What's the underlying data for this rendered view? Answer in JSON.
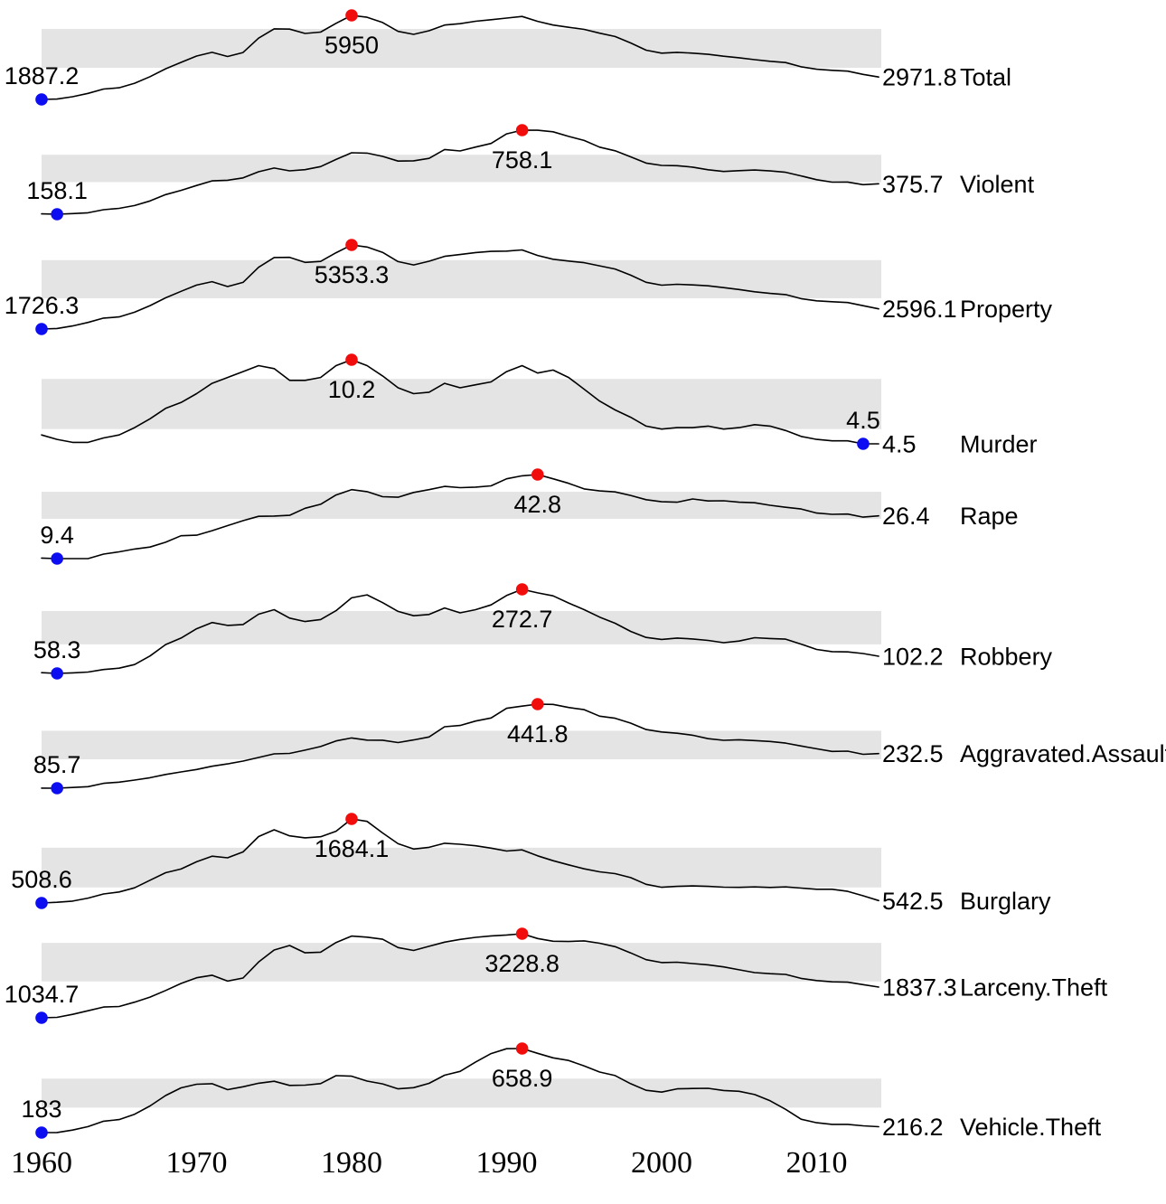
{
  "colors": {
    "line": "#000000",
    "band": "#e4e4e4",
    "min_dot": "#0d0df2",
    "peak_dot": "#f20d0d",
    "text": "#000000",
    "background": "#ffffff"
  },
  "chart_data": {
    "type": "line",
    "variant": "sparklines-small-multiples",
    "band": "interquartile-range",
    "grid": false,
    "legend": "none",
    "years": {
      "start": 1960,
      "end": 2014
    },
    "x_ticks": [
      1960,
      1970,
      1980,
      1990,
      2000,
      2010
    ],
    "series": [
      {
        "name": "Total",
        "min_label": "1887.2",
        "min_year": 1960,
        "max_label": "5950",
        "max_year": 1980,
        "end_label": "2971.8",
        "values": [
          1887.2,
          1906.1,
          2019.8,
          2180.3,
          2388.1,
          2449.0,
          2670.8,
          2989.7,
          3370.2,
          3680.0,
          3984.5,
          4164.7,
          3961.4,
          4154.4,
          4850.4,
          5298.5,
          5287.3,
          5077.6,
          5140.3,
          5565.5,
          5950.0,
          5858.2,
          5603.6,
          5175.0,
          5031.3,
          5207.1,
          5480.4,
          5550.0,
          5664.2,
          5741.0,
          5820.3,
          5897.8,
          5660.2,
          5484.4,
          5373.5,
          5274.9,
          5087.6,
          4927.3,
          4619.3,
          4266.5,
          4124.8,
          4162.6,
          4125.0,
          4067.0,
          3977.3,
          3900.5,
          3808.1,
          3730.4,
          3669.0,
          3465.5,
          3345.5,
          3292.5,
          3255.8,
          3098.6,
          2971.8
        ]
      },
      {
        "name": "Violent",
        "min_label": "158.1",
        "min_year": 1961,
        "max_label": "758.1",
        "max_year": 1991,
        "end_label": "375.7",
        "values": [
          160.9,
          158.1,
          162.3,
          168.2,
          190.6,
          200.2,
          220.0,
          253.2,
          298.4,
          328.7,
          363.5,
          396.0,
          401.0,
          417.4,
          461.1,
          487.8,
          467.8,
          475.9,
          497.8,
          548.9,
          596.6,
          594.3,
          571.1,
          537.7,
          539.2,
          556.6,
          620.1,
          609.7,
          637.2,
          663.1,
          731.8,
          758.1,
          757.5,
          746.8,
          713.6,
          684.5,
          636.6,
          611.0,
          567.6,
          523.0,
          506.5,
          504.5,
          494.4,
          475.8,
          463.2,
          469.0,
          473.6,
          466.9,
          457.5,
          431.9,
          404.5,
          387.1,
          387.8,
          369.1,
          375.7
        ]
      },
      {
        "name": "Property",
        "min_label": "1726.3",
        "min_year": 1960,
        "max_label": "5353.3",
        "max_year": 1980,
        "end_label": "2596.1",
        "values": [
          1726.3,
          1747.9,
          1857.5,
          2012.1,
          2197.5,
          2248.8,
          2450.9,
          2736.5,
          3071.8,
          3351.3,
          3621.0,
          3768.8,
          3560.4,
          3737.0,
          4389.3,
          4810.7,
          4819.5,
          4601.7,
          4642.5,
          5016.6,
          5353.3,
          5263.9,
          5032.5,
          4637.4,
          4492.1,
          4650.5,
          4862.6,
          4940.3,
          5027.1,
          5077.9,
          5088.5,
          5139.7,
          4902.7,
          4737.6,
          4660.0,
          4590.5,
          4451.0,
          4316.3,
          4052.5,
          3743.6,
          3618.3,
          3658.1,
          3630.6,
          3591.2,
          3514.1,
          3431.5,
          3334.5,
          3263.5,
          3211.5,
          3036.1,
          2941.9,
          2905.4,
          2868.0,
          2730.7,
          2596.1
        ]
      },
      {
        "name": "Murder",
        "min_label": "4.5",
        "min_year": 2013,
        "max_label": "10.2",
        "max_year": 1980,
        "end_label": "4.5",
        "values": [
          5.1,
          4.8,
          4.6,
          4.6,
          4.9,
          5.1,
          5.6,
          6.2,
          6.9,
          7.3,
          7.9,
          8.6,
          9.0,
          9.4,
          9.8,
          9.6,
          8.8,
          8.8,
          9.0,
          9.8,
          10.2,
          9.8,
          9.1,
          8.3,
          7.9,
          8.0,
          8.6,
          8.3,
          8.5,
          8.7,
          9.4,
          9.8,
          9.3,
          9.5,
          9.0,
          8.2,
          7.4,
          6.8,
          6.3,
          5.7,
          5.5,
          5.6,
          5.6,
          5.7,
          5.5,
          5.6,
          5.8,
          5.7,
          5.4,
          5.0,
          4.8,
          4.7,
          4.7,
          4.5,
          4.5
        ]
      },
      {
        "name": "Rape",
        "min_label": "9.4",
        "min_year": 1961,
        "max_label": "42.8",
        "max_year": 1992,
        "end_label": "26.4",
        "values": [
          9.6,
          9.4,
          9.4,
          9.4,
          11.2,
          12.1,
          13.2,
          14.0,
          15.9,
          18.5,
          18.7,
          20.5,
          22.5,
          24.5,
          26.2,
          26.3,
          26.6,
          29.4,
          31.0,
          34.7,
          36.8,
          36.0,
          34.0,
          33.8,
          35.7,
          36.8,
          38.1,
          37.6,
          37.8,
          38.3,
          41.1,
          42.3,
          42.8,
          41.1,
          39.3,
          37.1,
          36.3,
          35.9,
          34.5,
          32.8,
          32.0,
          31.8,
          33.1,
          32.3,
          32.4,
          31.8,
          31.6,
          30.6,
          29.8,
          29.1,
          27.5,
          27.0,
          27.1,
          25.9,
          26.4
        ]
      },
      {
        "name": "Robbery",
        "min_label": "58.3",
        "min_year": 1961,
        "max_label": "272.7",
        "max_year": 1991,
        "end_label": "102.2",
        "values": [
          60.1,
          58.3,
          59.7,
          61.8,
          68.2,
          71.7,
          80.8,
          102.8,
          131.8,
          148.4,
          172.1,
          188.0,
          180.7,
          183.1,
          209.3,
          220.8,
          199.3,
          190.7,
          195.8,
          218.4,
          251.1,
          258.7,
          238.9,
          216.5,
          205.4,
          208.5,
          225.1,
          212.7,
          220.9,
          233.0,
          257.0,
          272.7,
          263.7,
          256.0,
          237.8,
          220.9,
          201.9,
          186.2,
          165.5,
          150.1,
          145.0,
          148.5,
          146.1,
          142.5,
          136.7,
          140.8,
          149.4,
          147.3,
          145.7,
          133.1,
          119.3,
          113.9,
          113.1,
          109.0,
          102.2
        ]
      },
      {
        "name": "Aggravated.Assault",
        "min_label": "85.7",
        "min_year": 1961,
        "max_label": "441.8",
        "max_year": 1992,
        "end_label": "232.5",
        "values": [
          86.1,
          85.7,
          88.6,
          92.4,
          106.2,
          111.3,
          120.3,
          130.2,
          143.8,
          154.5,
          164.8,
          178.8,
          188.8,
          200.5,
          215.8,
          231.1,
          233.2,
          247.0,
          262.1,
          286.0,
          298.5,
          289.3,
          289.2,
          279.2,
          290.2,
          302.9,
          346.1,
          351.3,
          370.2,
          383.4,
          424.1,
          433.4,
          441.8,
          440.5,
          427.6,
          418.3,
          391.0,
          382.1,
          361.4,
          334.3,
          324.0,
          318.6,
          310.1,
          295.4,
          288.6,
          290.8,
          287.5,
          283.8,
          276.7,
          264.7,
          252.8,
          241.5,
          242.8,
          229.1,
          232.5
        ]
      },
      {
        "name": "Burglary",
        "min_label": "508.6",
        "min_year": 1960,
        "max_label": "1684.1",
        "max_year": 1980,
        "end_label": "542.5",
        "values": [
          508.6,
          518.9,
          535.2,
          576.4,
          634.7,
          662.7,
          721.0,
          826.6,
          932.3,
          984.1,
          1084.9,
          1163.5,
          1140.8,
          1222.5,
          1437.7,
          1532.1,
          1448.2,
          1419.8,
          1434.6,
          1511.9,
          1684.1,
          1649.5,
          1488.8,
          1337.7,
          1263.7,
          1287.3,
          1344.6,
          1329.6,
          1309.2,
          1276.3,
          1235.9,
          1252.1,
          1168.4,
          1099.7,
          1042.1,
          987.0,
          945.0,
          918.8,
          863.2,
          770.4,
          728.8,
          741.8,
          747.0,
          741.0,
          730.3,
          726.9,
          733.1,
          726.1,
          733.0,
          717.7,
          701.0,
          701.3,
          672.2,
          610.0,
          542.5
        ]
      },
      {
        "name": "Larceny.Theft",
        "min_label": "1034.7",
        "min_year": 1960,
        "max_label": "3228.8",
        "max_year": 1991,
        "end_label": "1837.3",
        "values": [
          1034.7,
          1045.4,
          1124.8,
          1219.1,
          1315.5,
          1329.3,
          1442.9,
          1575.8,
          1746.6,
          1930.9,
          2079.3,
          2145.5,
          1993.6,
          2071.9,
          2489.5,
          2804.8,
          2921.3,
          2729.9,
          2747.4,
          2999.1,
          3167.0,
          3139.7,
          3084.8,
          2868.9,
          2791.3,
          2901.2,
          3010.3,
          3081.3,
          3134.9,
          3171.3,
          3194.8,
          3228.8,
          3103.0,
          3033.9,
          3026.9,
          3043.2,
          2980.3,
          2891.8,
          2729.5,
          2550.7,
          2477.3,
          2485.7,
          2450.7,
          2416.5,
          2362.3,
          2287.8,
          2213.2,
          2185.4,
          2166.1,
          2064.5,
          2005.8,
          1974.1,
          1965.4,
          1901.6,
          1837.3
        ]
      },
      {
        "name": "Vehicle.Theft",
        "min_label": "183",
        "min_year": 1960,
        "max_label": "658.9",
        "max_year": 1991,
        "end_label": "216.2",
        "values": [
          183.0,
          183.6,
          197.4,
          216.6,
          247.4,
          256.8,
          286.9,
          334.1,
          393.0,
          436.2,
          456.8,
          459.8,
          426.1,
          442.6,
          462.2,
          473.7,
          450.0,
          451.9,
          460.5,
          505.6,
          502.2,
          474.7,
          458.8,
          430.8,
          437.1,
          462.0,
          507.8,
          529.4,
          582.9,
          630.4,
          657.8,
          658.9,
          631.6,
          606.3,
          591.3,
          560.3,
          525.7,
          505.7,
          459.9,
          422.5,
          412.2,
          430.5,
          432.9,
          433.7,
          421.5,
          416.8,
          398.4,
          363.3,
          314.7,
          258.8,
          238.8,
          229.6,
          229.7,
          221.3,
          216.2
        ]
      }
    ]
  }
}
